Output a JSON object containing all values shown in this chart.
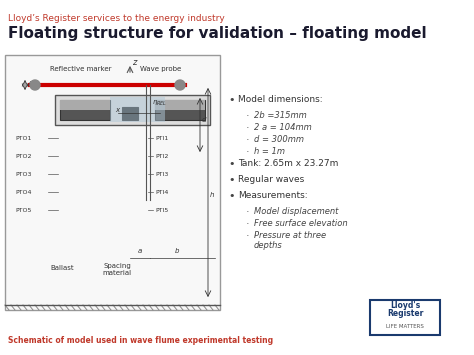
{
  "title_top": "Lloyd’s Register services to the energy industry",
  "title_main": "Floating structure for validation – floating model",
  "subtitle_caption": "Schematic of model used in wave flume experimental testing",
  "bullet_points": [
    {
      "text": "Model dimensions:",
      "level": 1
    },
    {
      "text": "2b =315mm",
      "level": 2
    },
    {
      "text": "2 a = 104mm",
      "level": 2
    },
    {
      "text": "d = 300mm",
      "level": 2
    },
    {
      "text": "h = 1m",
      "level": 2
    },
    {
      "text": "Tank: 2.65m x 23.27m",
      "level": 1
    },
    {
      "text": "Regular waves",
      "level": 1
    },
    {
      "text": "Measurements:",
      "level": 1
    },
    {
      "text": "Model displacement",
      "level": 2
    },
    {
      "text": "Free surface elevation",
      "level": 2
    },
    {
      "text": "Pressure at three\ndepths",
      "level": 2
    }
  ],
  "title_top_color": "#c0392b",
  "title_main_color": "#1a1a2e",
  "red_bar_color": "#cc0000",
  "caption_color": "#c0392b"
}
